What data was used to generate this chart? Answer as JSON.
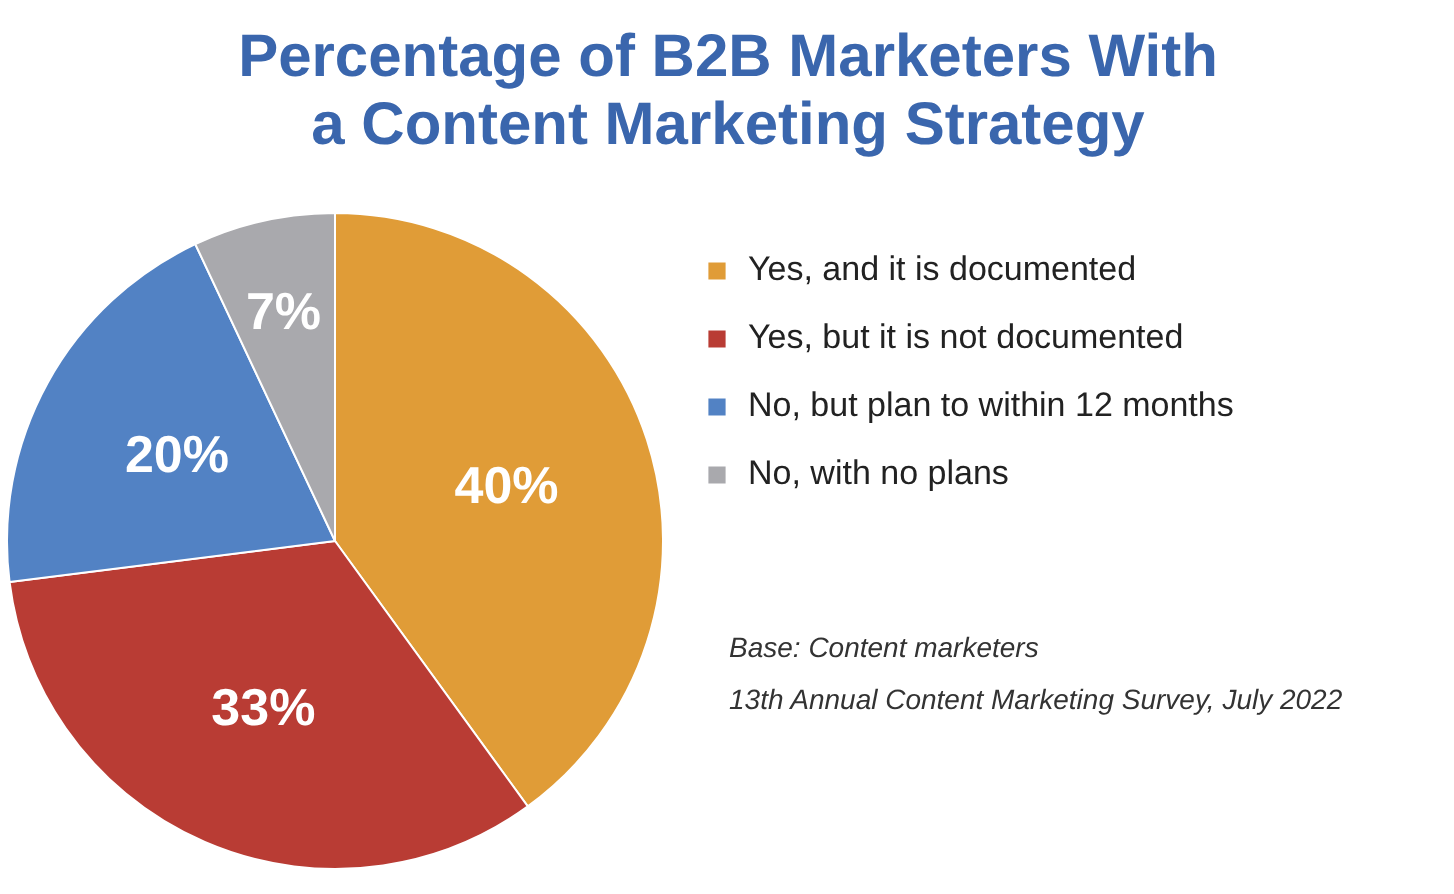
{
  "chart_data": {
    "type": "pie",
    "title": "Percentage of B2B Marketers With a Content Marketing Strategy",
    "categories": [
      "Yes, and it is documented",
      "Yes, but it is not documented",
      "No, but plan to within 12 months",
      "No, with no plans"
    ],
    "values": [
      40,
      33,
      20,
      7
    ],
    "colors": [
      "#e09c37",
      "#b93c34",
      "#5282c4",
      "#a9a9ad"
    ],
    "value_labels": [
      "40%",
      "33%",
      "20%",
      "7%"
    ],
    "legend": "right",
    "annotations": [
      "Base: Content marketers",
      "13th Annual Content Marketing Survey, July 2022"
    ]
  }
}
